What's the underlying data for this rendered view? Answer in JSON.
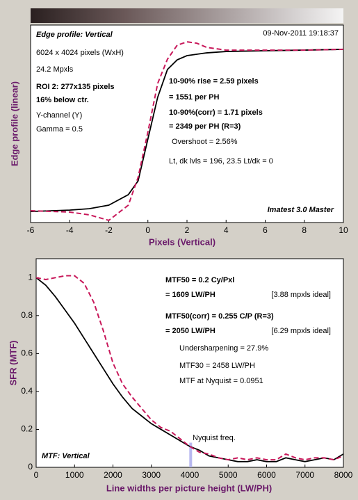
{
  "chart_data": [
    {
      "type": "line",
      "title": "Edge profile: Vertical",
      "date": "09-Nov-2011 19:18:37",
      "x_label": "Pixels (Vertical)",
      "y_label": "Edge profile (linear)",
      "annotations": [
        "6024 x 4024 pixels (WxH)",
        "24.2 Mpxls",
        "ROI 2:  277x135 pixels",
        "16% below ctr.",
        "Y-channel  (Y)",
        "Gamma = 0.5",
        "10-90% rise = 2.59 pixels",
        "= 1551 per PH",
        "10-90%(corr) = 1.71 pixels",
        "= 2349 per PH  (R=3)",
        "Overshoot = 2.56%",
        "Lt, dk lvls = 196, 23.5   Lt/dk = 0",
        "Imatest 3.0 Master"
      ],
      "x": [
        -6,
        -4,
        -3,
        -2,
        -1,
        -0.5,
        0,
        0.5,
        1,
        1.5,
        2,
        2.5,
        3,
        4,
        6,
        8,
        10
      ],
      "series": [
        {
          "color": "#000000",
          "style": "solid",
          "values": [
            0.056,
            0.063,
            0.07,
            0.088,
            0.141,
            0.211,
            0.423,
            0.634,
            0.775,
            0.824,
            0.845,
            0.852,
            0.859,
            0.866,
            0.87,
            0.873,
            0.877
          ]
        },
        {
          "color": "#c8185a",
          "style": "dashed",
          "values": [
            0.06,
            0.053,
            0.039,
            0.011,
            0.088,
            0.229,
            0.458,
            0.704,
            0.827,
            0.898,
            0.915,
            0.908,
            0.887,
            0.873,
            0.873,
            0.873,
            0.877
          ]
        }
      ],
      "xlim": [
        -6,
        10
      ],
      "xticks": [
        -6,
        -4,
        -2,
        0,
        2,
        4,
        6,
        8,
        10
      ],
      "ylim": [
        0,
        1
      ]
    },
    {
      "type": "line",
      "title": "MTF: Vertical",
      "x_label": "Line widths per picture height (LW/PH)",
      "y_label": "SFR (MTF)",
      "annotations": [
        "MTF50 = 0.2 Cy/Pxl",
        "= 1609 LW/PH",
        "[3.88 mpxls ideal]",
        "MTF50(corr) = 0.255 C/P  (R=3)",
        "= 2050 LW/PH",
        "[6.29 mpxls ideal]",
        "Undersharpening = 27.9%",
        "MTF30 = 2458 LW/PH",
        "MTF at Nyquist = 0.0951",
        "Nyquist freq."
      ],
      "nyquist": 4024,
      "x": [
        0,
        250,
        500,
        750,
        1000,
        1250,
        1500,
        1750,
        2000,
        2250,
        2500,
        2750,
        3000,
        3250,
        3500,
        3750,
        4000,
        4250,
        4500,
        4750,
        5000,
        5250,
        5500,
        5750,
        6000,
        6250,
        6500,
        6750,
        7000,
        7250,
        7500,
        7750,
        8000
      ],
      "series": [
        {
          "color": "#000000",
          "style": "solid",
          "values": [
            1,
            0.96,
            0.9,
            0.83,
            0.76,
            0.68,
            0.6,
            0.52,
            0.44,
            0.37,
            0.31,
            0.27,
            0.23,
            0.2,
            0.17,
            0.14,
            0.11,
            0.09,
            0.06,
            0.05,
            0.04,
            0.03,
            0.03,
            0.04,
            0.03,
            0.03,
            0.05,
            0.04,
            0.03,
            0.04,
            0.05,
            0.04,
            0.07
          ]
        },
        {
          "color": "#c8185a",
          "style": "dashed",
          "values": [
            1,
            0.99,
            1.0,
            1.01,
            1.01,
            0.97,
            0.87,
            0.72,
            0.55,
            0.44,
            0.37,
            0.31,
            0.25,
            0.21,
            0.19,
            0.15,
            0.11,
            0.08,
            0.07,
            0.05,
            0.04,
            0.05,
            0.04,
            0.05,
            0.04,
            0.04,
            0.07,
            0.05,
            0.04,
            0.05,
            0.05,
            0.04,
            0.06
          ]
        }
      ],
      "xlim": [
        0,
        8000
      ],
      "xticks": [
        0,
        1000,
        2000,
        3000,
        4000,
        5000,
        6000,
        7000,
        8000
      ],
      "ylim": [
        0,
        1.1
      ],
      "yticks": [
        0,
        0.2,
        0.4,
        0.6,
        0.8,
        1
      ]
    }
  ]
}
